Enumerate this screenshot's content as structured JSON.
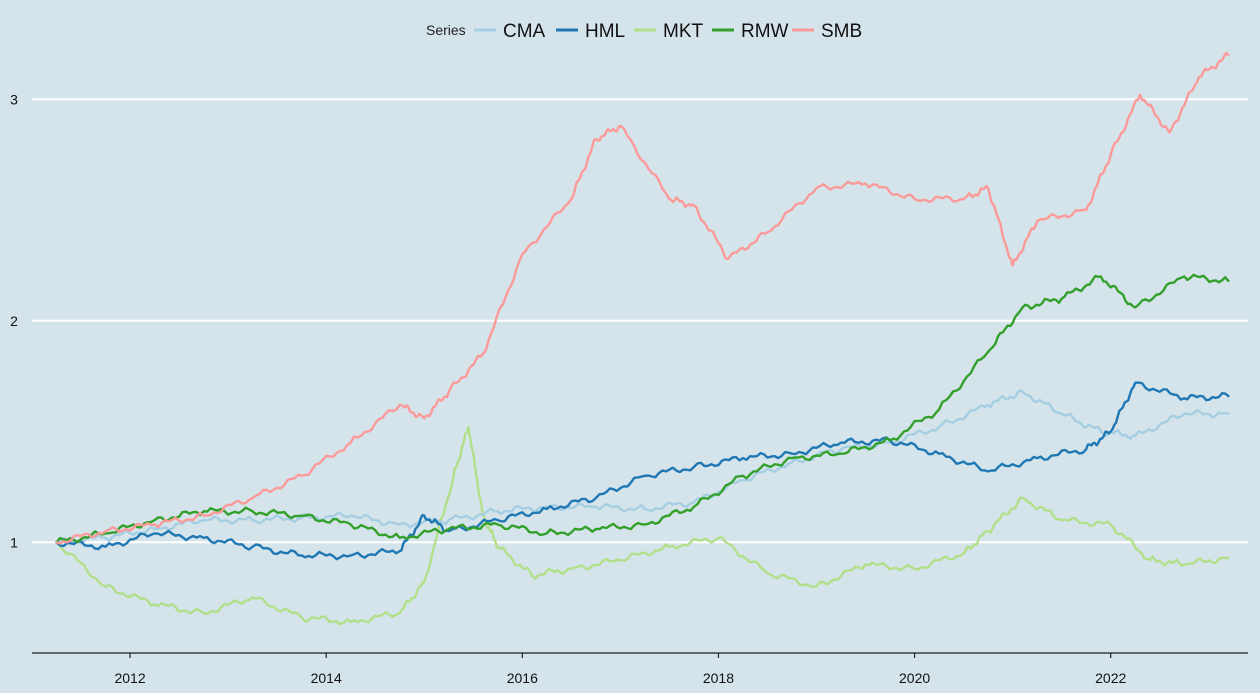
{
  "chart_data": {
    "type": "line",
    "title": "",
    "xlabel": "",
    "ylabel": "",
    "legend": {
      "title": "Series",
      "position": "top",
      "entries": [
        "CMA",
        "HML",
        "MKT",
        "RMW",
        "SMB"
      ]
    },
    "xlim": [
      2011.0,
      2023.4
    ],
    "ylim": [
      0.5,
      3.2
    ],
    "x_ticks": [
      2012,
      2014,
      2016,
      2018,
      2020,
      2022
    ],
    "x_tick_labels": [
      "2012",
      "2014",
      "2016",
      "2018",
      "2020",
      "2022"
    ],
    "y_ticks": [
      1,
      2,
      3
    ],
    "y_tick_labels": [
      "1",
      "2",
      "3"
    ],
    "grid": {
      "horizontal": true,
      "vertical": false
    },
    "series": [
      {
        "name": "CMA",
        "color": "#a6cee3",
        "x": [
          2011.25,
          2011.75,
          2012.25,
          2012.75,
          2013.25,
          2013.75,
          2014.25,
          2014.75,
          2015.25,
          2015.75,
          2016.25,
          2016.75,
          2017.25,
          2017.75,
          2018.25,
          2018.75,
          2019.25,
          2019.75,
          2020.25,
          2020.75,
          2021.1,
          2021.5,
          2021.9,
          2022.25,
          2022.75,
          2023.2
        ],
        "y": [
          1.0,
          1.02,
          1.06,
          1.1,
          1.1,
          1.11,
          1.12,
          1.08,
          1.1,
          1.14,
          1.16,
          1.16,
          1.15,
          1.18,
          1.28,
          1.36,
          1.42,
          1.45,
          1.52,
          1.62,
          1.68,
          1.58,
          1.5,
          1.48,
          1.58,
          1.58
        ]
      },
      {
        "name": "HML",
        "color": "#1f78b4",
        "x": [
          2011.25,
          2011.75,
          2012.25,
          2012.75,
          2013.25,
          2013.75,
          2014.25,
          2014.75,
          2015.0,
          2015.25,
          2015.75,
          2016.25,
          2016.75,
          2017.25,
          2017.75,
          2018.25,
          2018.75,
          2019.25,
          2019.75,
          2020.25,
          2020.75,
          2021.25,
          2021.75,
          2022.0,
          2022.25,
          2022.75,
          2023.2
        ],
        "y": [
          1.0,
          0.98,
          1.04,
          1.02,
          0.98,
          0.94,
          0.94,
          0.96,
          1.12,
          1.05,
          1.1,
          1.15,
          1.2,
          1.3,
          1.34,
          1.38,
          1.4,
          1.45,
          1.46,
          1.4,
          1.32,
          1.38,
          1.42,
          1.5,
          1.72,
          1.65,
          1.66
        ]
      },
      {
        "name": "MKT",
        "color": "#b2df8a",
        "x": [
          2011.25,
          2011.75,
          2012.25,
          2012.75,
          2013.25,
          2013.75,
          2014.25,
          2014.75,
          2015.0,
          2015.3,
          2015.45,
          2015.6,
          2015.75,
          2016.1,
          2016.5,
          2017.0,
          2017.5,
          2018.0,
          2018.5,
          2019.0,
          2019.5,
          2020.0,
          2020.5,
          2020.75,
          2021.1,
          2021.5,
          2022.0,
          2022.4,
          2022.75,
          2023.2
        ],
        "y": [
          1.0,
          0.8,
          0.72,
          0.68,
          0.75,
          0.66,
          0.64,
          0.68,
          0.82,
          1.3,
          1.52,
          1.12,
          0.98,
          0.85,
          0.88,
          0.92,
          0.98,
          1.02,
          0.86,
          0.8,
          0.9,
          0.88,
          0.95,
          1.05,
          1.2,
          1.1,
          1.08,
          0.92,
          0.9,
          0.93
        ]
      },
      {
        "name": "RMW",
        "color": "#33a02c",
        "x": [
          2011.25,
          2011.75,
          2012.25,
          2012.75,
          2013.25,
          2013.75,
          2014.25,
          2014.75,
          2015.25,
          2015.75,
          2016.25,
          2016.75,
          2017.25,
          2017.75,
          2018.25,
          2018.75,
          2019.25,
          2019.75,
          2020.25,
          2020.75,
          2021.1,
          2021.5,
          2021.9,
          2022.25,
          2022.75,
          2023.2
        ],
        "y": [
          1.0,
          1.04,
          1.1,
          1.14,
          1.14,
          1.12,
          1.08,
          1.02,
          1.06,
          1.08,
          1.04,
          1.06,
          1.08,
          1.16,
          1.3,
          1.38,
          1.4,
          1.46,
          1.6,
          1.86,
          2.06,
          2.1,
          2.2,
          2.06,
          2.2,
          2.18
        ]
      },
      {
        "name": "SMB",
        "color": "#fb9a99",
        "x": [
          2011.25,
          2011.75,
          2012.25,
          2012.75,
          2013.25,
          2013.75,
          2014.25,
          2014.75,
          2015.0,
          2015.25,
          2015.6,
          2016.0,
          2016.5,
          2016.75,
          2017.0,
          2017.5,
          2017.75,
          2018.1,
          2018.5,
          2019.0,
          2019.5,
          2020.0,
          2020.5,
          2020.75,
          2021.0,
          2021.25,
          2021.75,
          2022.0,
          2022.3,
          2022.6,
          2022.9,
          2023.2
        ],
        "y": [
          1.0,
          1.05,
          1.08,
          1.12,
          1.2,
          1.3,
          1.45,
          1.62,
          1.56,
          1.68,
          1.85,
          2.3,
          2.55,
          2.82,
          2.88,
          2.55,
          2.52,
          2.28,
          2.4,
          2.6,
          2.62,
          2.55,
          2.55,
          2.6,
          2.25,
          2.45,
          2.5,
          2.75,
          3.02,
          2.85,
          3.1,
          3.2
        ]
      }
    ]
  }
}
